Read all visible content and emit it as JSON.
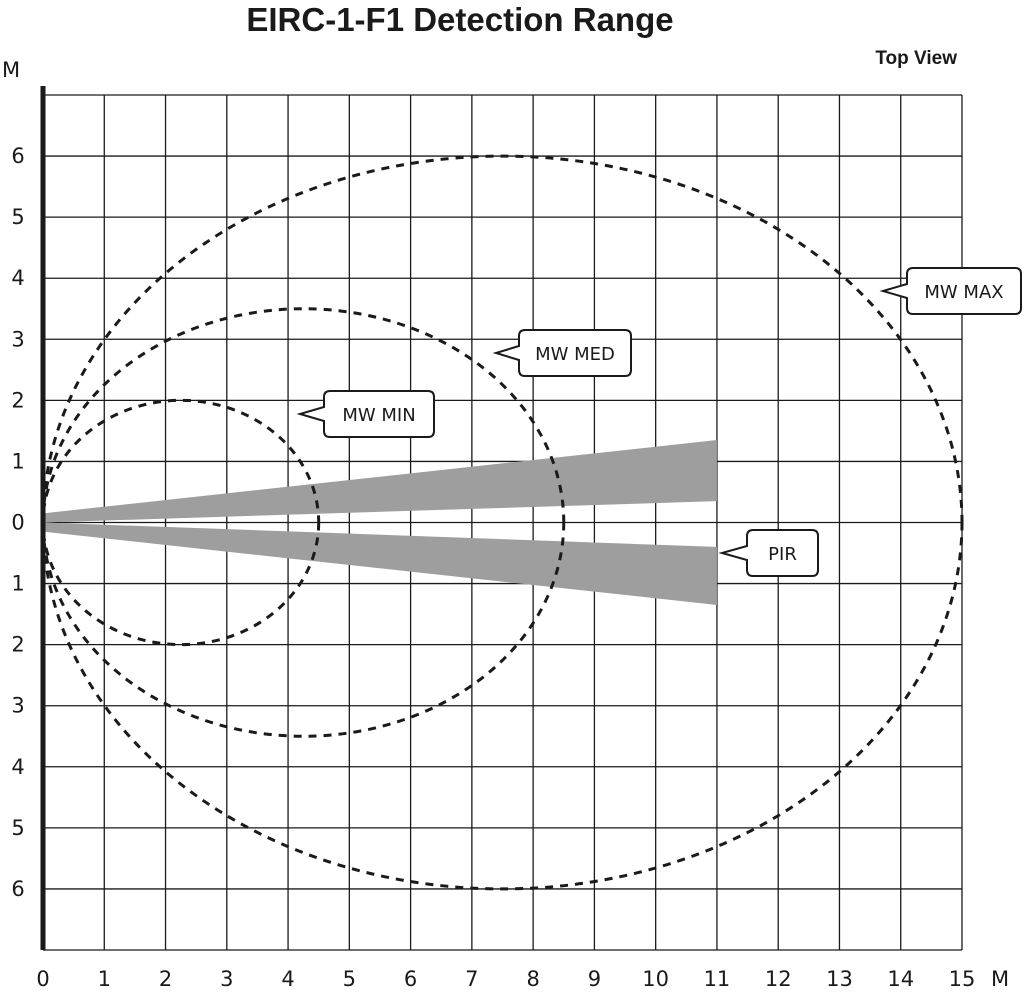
{
  "title": "EIRC-1-F1 Detection Range",
  "view_label": "Top View",
  "chart_data": {
    "type": "diagram",
    "x_unit": "M",
    "y_unit": "M",
    "x_ticks": [
      "0",
      "1",
      "2",
      "3",
      "4",
      "5",
      "6",
      "7",
      "8",
      "9",
      "10",
      "11",
      "12",
      "13",
      "14",
      "15"
    ],
    "y_ticks": [
      "6",
      "5",
      "4",
      "3",
      "2",
      "1",
      "0",
      "1",
      "2",
      "3",
      "4",
      "5",
      "6"
    ],
    "xlim": [
      0,
      15
    ],
    "ylim": [
      -7,
      7
    ],
    "grid": true,
    "zones": [
      {
        "label": "MW MIN",
        "shape": "dashed-ellipse",
        "x_extent": [
          0,
          4.5
        ],
        "y_extent": [
          -2,
          2
        ]
      },
      {
        "label": "MW MED",
        "shape": "dashed-ellipse",
        "x_extent": [
          0,
          8.5
        ],
        "y_extent": [
          -3.5,
          3.5
        ]
      },
      {
        "label": "MW MAX",
        "shape": "dashed-ellipse",
        "x_extent": [
          0,
          15
        ],
        "y_extent": [
          -6,
          6
        ]
      },
      {
        "label": "PIR",
        "shape": "filled-beams",
        "x_extent": [
          0,
          11
        ],
        "beams": [
          {
            "y_at_origin": [
              0,
              0.15
            ],
            "y_at_end": [
              0.35,
              1.35
            ]
          },
          {
            "y_at_origin": [
              -0.15,
              0
            ],
            "y_at_end": [
              -1.35,
              -0.4
            ]
          }
        ]
      }
    ],
    "colors": {
      "beam": "#9e9e9e",
      "line": "#1a1a1a",
      "grid": "#1a1a1a"
    }
  }
}
